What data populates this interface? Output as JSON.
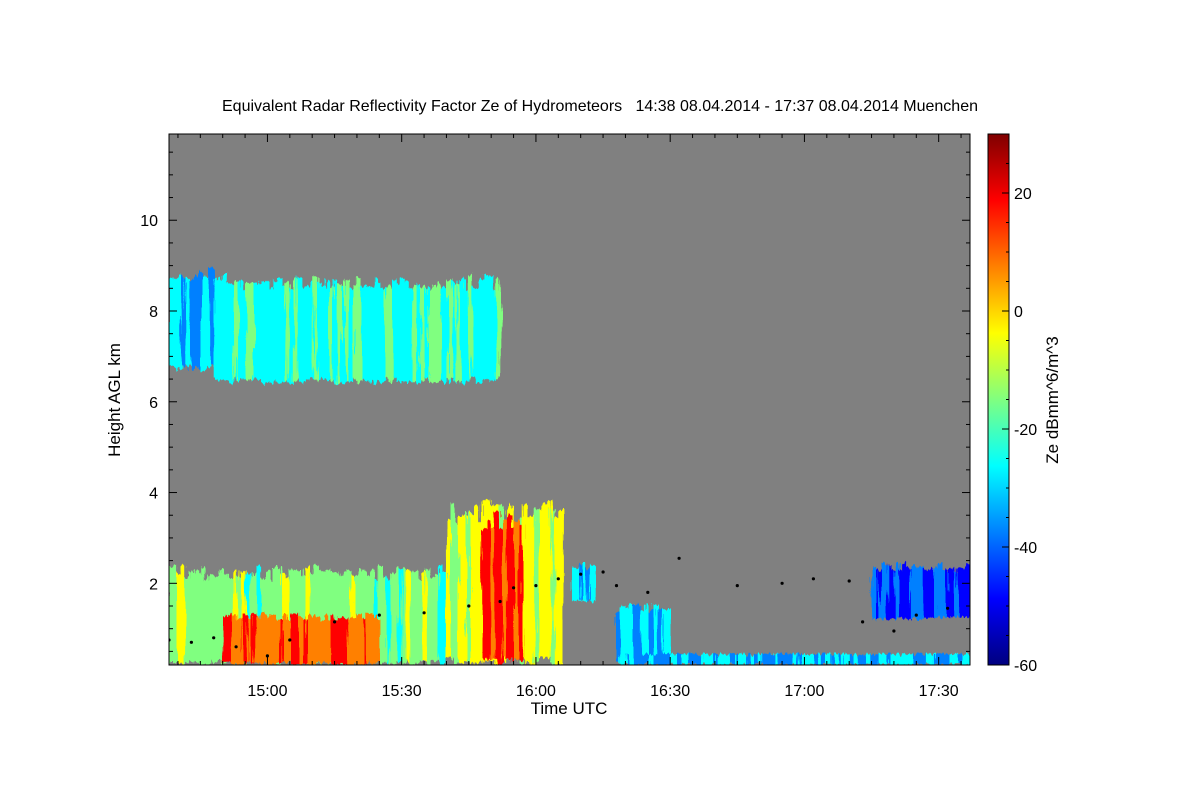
{
  "chart_data": {
    "type": "heatmap",
    "title": "Equivalent Radar Reflectivity Factor Ze of Hydrometeors   14:38 08.04.2014 - 17:37 08.04.2014 Muenchen",
    "xlabel": "Time UTC",
    "ylabel": "Height AGL km",
    "xlim_minutes": [
      878,
      1057
    ],
    "ylim_km": [
      0.2,
      11.9
    ],
    "x_ticks": [
      {
        "minutes": 900,
        "label": "15:00"
      },
      {
        "minutes": 930,
        "label": "15:30"
      },
      {
        "minutes": 960,
        "label": "16:00"
      },
      {
        "minutes": 990,
        "label": "16:30"
      },
      {
        "minutes": 1020,
        "label": "17:00"
      },
      {
        "minutes": 1050,
        "label": "17:30"
      }
    ],
    "y_ticks": [
      {
        "value": 2,
        "label": "2"
      },
      {
        "value": 4,
        "label": "4"
      },
      {
        "value": 6,
        "label": "6"
      },
      {
        "value": 8,
        "label": "8"
      },
      {
        "value": 10,
        "label": "10"
      }
    ],
    "background_color": "#808080",
    "colorbar": {
      "label": "Ze dBmm^6/m^3",
      "range": [
        -60,
        30
      ],
      "ticks": [
        {
          "value": 20,
          "label": "20"
        },
        {
          "value": 0,
          "label": "0"
        },
        {
          "value": -20,
          "label": "-20"
        },
        {
          "value": -40,
          "label": "-40"
        },
        {
          "value": -60,
          "label": "-60"
        }
      ],
      "colormap": "jet",
      "colors": [
        "#00007f",
        "#0000ff",
        "#0080ff",
        "#00ffff",
        "#80ff80",
        "#ffff00",
        "#ff8000",
        "#ff0000",
        "#7f0000"
      ]
    },
    "echo_regions": [
      {
        "name": "upper-cloud-west",
        "t_start": 878,
        "t_end": 888,
        "z_bottom": 6.7,
        "z_top": 8.9,
        "ze_mean": -32
      },
      {
        "name": "upper-cloud-east",
        "t_start": 888,
        "t_end": 952,
        "z_bottom": 6.4,
        "z_top": 8.7,
        "ze_mean": -22
      },
      {
        "name": "low-stratiform",
        "t_start": 878,
        "t_end": 940,
        "z_bottom": 0.2,
        "z_top": 2.3,
        "ze_mean": -15
      },
      {
        "name": "low-stratiform-core",
        "t_start": 890,
        "t_end": 925,
        "z_bottom": 0.2,
        "z_top": 1.3,
        "ze_mean": 12
      },
      {
        "name": "convective-cell",
        "t_start": 940,
        "t_end": 966,
        "z_bottom": 0.2,
        "z_top": 3.7,
        "ze_mean": -5
      },
      {
        "name": "convective-core",
        "t_start": 948,
        "t_end": 957,
        "z_bottom": 0.2,
        "z_top": 3.5,
        "ze_mean": 16
      },
      {
        "name": "shower-tail",
        "t_start": 978,
        "t_end": 990,
        "z_bottom": 0.2,
        "z_top": 1.5,
        "ze_mean": -30
      },
      {
        "name": "isolated-echo",
        "t_start": 968,
        "t_end": 973,
        "z_bottom": 1.6,
        "z_top": 2.4,
        "ze_mean": -28
      },
      {
        "name": "late-aloft-echo",
        "t_start": 1035,
        "t_end": 1057,
        "z_bottom": 1.2,
        "z_top": 2.4,
        "ze_mean": -45
      },
      {
        "name": "surface-clutter",
        "t_start": 980,
        "t_end": 1057,
        "z_bottom": 0.2,
        "z_top": 0.45,
        "ze_mean": -32
      }
    ],
    "cloud_base_points": [
      [
        878,
        0.75
      ],
      [
        883,
        0.7
      ],
      [
        888,
        0.8
      ],
      [
        893,
        0.6
      ],
      [
        900,
        0.4
      ],
      [
        905,
        0.75
      ],
      [
        915,
        1.15
      ],
      [
        925,
        1.3
      ],
      [
        935,
        1.35
      ],
      [
        945,
        1.5
      ],
      [
        952,
        1.6
      ],
      [
        955,
        1.9
      ],
      [
        960,
        1.95
      ],
      [
        965,
        2.1
      ],
      [
        970,
        2.2
      ],
      [
        975,
        2.25
      ],
      [
        978,
        1.95
      ],
      [
        985,
        1.8
      ],
      [
        992,
        2.55
      ],
      [
        1005,
        1.95
      ],
      [
        1015,
        2.0
      ],
      [
        1022,
        2.1
      ],
      [
        1030,
        2.05
      ],
      [
        1033,
        1.15
      ],
      [
        1040,
        0.95
      ],
      [
        1045,
        1.3
      ],
      [
        1052,
        1.45
      ]
    ]
  }
}
